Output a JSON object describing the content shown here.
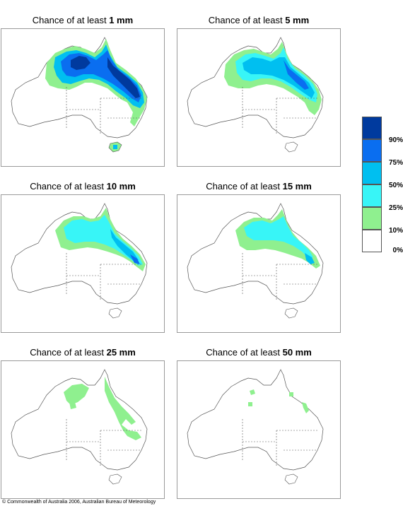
{
  "panels": [
    {
      "prefix": "Chance of at least",
      "amount": "1 mm"
    },
    {
      "prefix": "Chance of at least",
      "amount": "5 mm"
    },
    {
      "prefix": "Chance of at least",
      "amount": "10 mm"
    },
    {
      "prefix": "Chance of at least",
      "amount": "15 mm"
    },
    {
      "prefix": "Chance of at least",
      "amount": "25 mm"
    },
    {
      "prefix": "Chance of at least",
      "amount": "50 mm"
    }
  ],
  "legend": {
    "labels": [
      "90%",
      "75%",
      "50%",
      "25%",
      "10%",
      "0%"
    ],
    "colors": [
      "#003a9e",
      "#0a6ef0",
      "#00bff0",
      "#38f5f7",
      "#8ff08f",
      "#ffffff"
    ]
  },
  "copyright": "© Commonwealth of Australia 2006, Australian Bureau of Meteorology"
}
